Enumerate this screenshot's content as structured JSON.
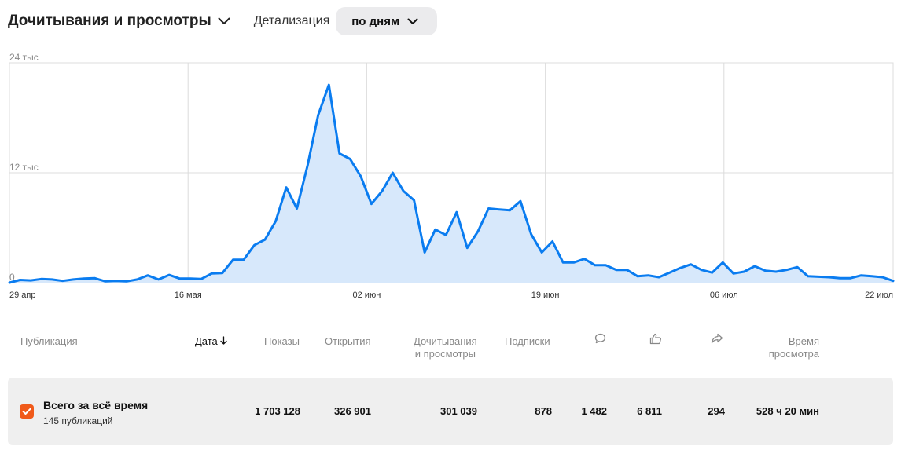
{
  "header": {
    "metric_label": "Дочитывания и просмотры",
    "detail_label": "Детализация",
    "detail_value": "по дням"
  },
  "chart_data": {
    "type": "area",
    "x_labels": [
      "29 апр",
      "16 мая",
      "02 июн",
      "19 июн",
      "06 июл",
      "22 июл"
    ],
    "y_ticks": [
      "24 тыс",
      "12 тыс",
      "0"
    ],
    "ylim": [
      0,
      24000
    ],
    "grid": true,
    "series": [
      {
        "color": "#0a7cf0",
        "values": [
          0,
          300,
          250,
          400,
          350,
          200,
          350,
          450,
          500,
          150,
          200,
          150,
          350,
          800,
          350,
          850,
          450,
          450,
          400,
          1000,
          1050,
          2500,
          2500,
          4100,
          4700,
          6700,
          10400,
          8100,
          12800,
          18300,
          21600,
          14100,
          13500,
          11600,
          8600,
          10000,
          12000,
          10000,
          9000,
          3300,
          5800,
          5200,
          7700,
          3800,
          5600,
          8100,
          8000,
          7900,
          8900,
          5300,
          3300,
          4500,
          2200,
          2200,
          2600,
          1900,
          1900,
          1400,
          1400,
          700,
          800,
          600,
          1100,
          1600,
          2000,
          1400,
          1100,
          2200,
          1000,
          1200,
          1800,
          1300,
          1200,
          1400,
          1700,
          700,
          650,
          600,
          500,
          500,
          800,
          700,
          600,
          200
        ]
      }
    ]
  },
  "table": {
    "headers": {
      "publication": "Публикация",
      "date": "Дата",
      "impressions": "Показы",
      "opens": "Открытия",
      "reads_line1": "Дочитывания",
      "reads_line2": "и просмотры",
      "subscriptions": "Подписки",
      "time_line1": "Время",
      "time_line2": "просмотра"
    },
    "header_icons": [
      "comment-icon",
      "like-icon",
      "share-icon"
    ],
    "total": {
      "title": "Всего за всё время",
      "subtitle": "145 публикаций",
      "impressions": "1 703 128",
      "opens": "326 901",
      "reads": "301 039",
      "subscriptions": "878",
      "comments": "1 482",
      "likes": "6 811",
      "shares": "294",
      "time_hours": "528",
      "time_hours_unit": "ч",
      "time_minutes": "20",
      "time_minutes_unit": "мин"
    }
  },
  "colors": {
    "accent": "#0a7cf0",
    "fill": "#d7e8fb",
    "checkbox": "#f05a1a",
    "row_bg": "#efefef"
  }
}
